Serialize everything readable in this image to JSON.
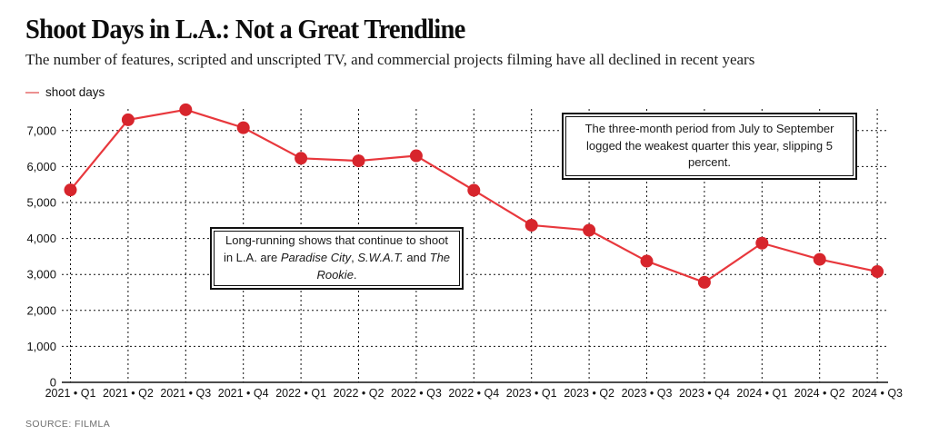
{
  "header": {
    "title": "Shoot Days in L.A.: Not a Great Trendline",
    "subtitle": "The number of features, scripted and unscripted TV, and commercial projects filming have all declined in recent years"
  },
  "legend": {
    "label": "shoot days",
    "swatch_color": "#ec9191"
  },
  "source": "SOURCE: FILMLA",
  "colors": {
    "line": "#e8383d",
    "marker": "#d7252c",
    "grid": "#111111",
    "axis": "#111111",
    "tick_text": "#111111"
  },
  "chart_data": {
    "type": "line",
    "title": "Shoot Days in L.A.: Not a Great Trendline",
    "series": [
      {
        "name": "shoot days",
        "values": [
          5350,
          7300,
          7580,
          7080,
          6230,
          6160,
          6300,
          5340,
          4370,
          4230,
          3370,
          2780,
          3870,
          3420,
          3080
        ]
      }
    ],
    "categories": [
      "2021 • Q1",
      "2021 • Q2",
      "2021 • Q3",
      "2021 • Q4",
      "2022 • Q1",
      "2022 • Q2",
      "2022 • Q3",
      "2022 • Q4",
      "2023 • Q1",
      "2023 • Q2",
      "2023 • Q3",
      "2023 • Q4",
      "2024 • Q1",
      "2024 • Q2",
      "2024 • Q3"
    ],
    "yticks": [
      0,
      1000,
      2000,
      3000,
      4000,
      5000,
      6000,
      7000
    ],
    "ylim": [
      0,
      7800
    ],
    "grid": "dashed, both axes",
    "legend_position": "top-left",
    "markers": "filled circles",
    "annotations": [
      {
        "name": "long-running-shows-note",
        "parts": [
          {
            "text": "Long-running shows that continue to shoot in L.A. are "
          },
          {
            "text": "Paradise City",
            "italic": true
          },
          {
            "text": ", "
          },
          {
            "text": "S.W.A.T.",
            "italic": true
          },
          {
            "text": " and "
          },
          {
            "text": "The Rookie",
            "italic": true
          },
          {
            "text": "."
          }
        ]
      },
      {
        "name": "q3-weakest-quarter-note",
        "parts": [
          {
            "text": "The three-month period from July to September logged the weakest quarter this year, slipping 5 percent."
          }
        ]
      }
    ]
  }
}
